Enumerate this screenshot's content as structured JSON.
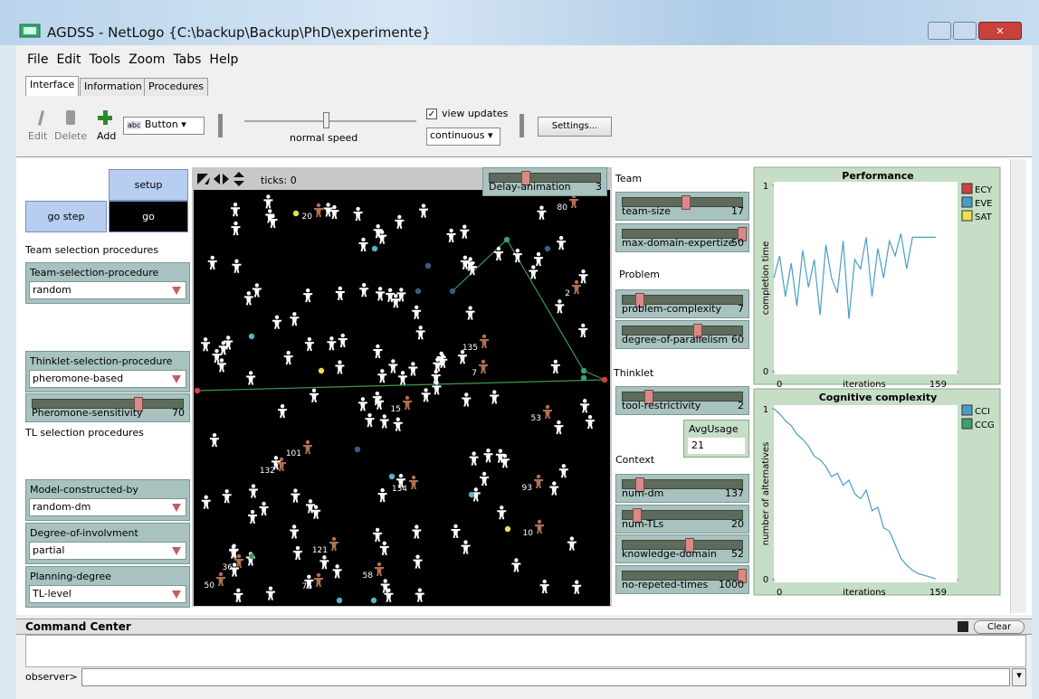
{
  "window": {
    "title": "AGDSS - NetLogo {C:\\backup\\Backup\\PhD\\experimente}"
  },
  "menu": [
    "File",
    "Edit",
    "Tools",
    "Zoom",
    "Tabs",
    "Help"
  ],
  "tabs": [
    "Interface",
    "Information",
    "Procedures"
  ],
  "toolbar": {
    "edit": "Edit",
    "delete": "Delete",
    "add": "Add",
    "abc": "abc",
    "widget_type": "Button",
    "speed_label": "normal speed",
    "view_updates": "view updates",
    "update_mode": "continuous",
    "settings": "Settings..."
  },
  "buttons": {
    "setup": "setup",
    "go_step": "go step",
    "go": "go"
  },
  "labels": {
    "team_selection": "Team selection procedures",
    "tl_selection": "TL selection procedures",
    "team": "Team",
    "problem": "Problem",
    "thinklet": "Thinklet",
    "context": "Context"
  },
  "choosers": [
    {
      "name": "Team-selection-procedure",
      "value": "random"
    },
    {
      "name": "Thinklet-selection-procedure",
      "value": "pheromone-based"
    },
    {
      "name": "Model-constructed-by",
      "value": "random-dm"
    },
    {
      "name": "Degree-of-involvment",
      "value": "partial"
    },
    {
      "name": "Planning-degree",
      "value": "TL-level"
    }
  ],
  "sliders": [
    {
      "name": "Pheromone-sensitivity",
      "value": 70
    },
    {
      "name": "Delay-animation",
      "value": 3
    },
    {
      "name": "team-size",
      "value": 17
    },
    {
      "name": "max-domain-expertize",
      "value": 50
    },
    {
      "name": "problem-complexity",
      "value": 7
    },
    {
      "name": "degree-of-parallelism",
      "value": 60
    },
    {
      "name": "tool-restrictivity",
      "value": 2
    },
    {
      "name": "num-dm",
      "value": 137
    },
    {
      "name": "num-TLs",
      "value": 20
    },
    {
      "name": "knowledge-domain",
      "value": 52
    },
    {
      "name": "no-repeted-times",
      "value": 1000
    }
  ],
  "monitor": {
    "name": "AvgUsage",
    "value": 21
  },
  "view": {
    "ticks_label": "ticks: 0",
    "agent_labels": [
      "20",
      "80",
      "2",
      "135",
      "7",
      "15",
      "53",
      "101",
      "132",
      "134",
      "93",
      "10",
      "121",
      "36",
      "58",
      "76",
      "50"
    ]
  },
  "plots": [
    {
      "title": "Performance",
      "xlabel": "iterations",
      "ylabel": "completion time",
      "xlim": [
        0,
        159
      ],
      "ylim": [
        0,
        1
      ],
      "xticks": [
        0,
        159
      ],
      "yticks": [
        0,
        1
      ],
      "x": [
        0,
        5,
        10,
        15,
        20,
        25,
        30,
        35,
        40,
        45,
        50,
        55,
        60,
        65,
        70,
        75,
        80,
        85,
        90,
        95,
        100,
        105,
        110,
        115,
        120,
        125,
        130,
        135,
        140
      ],
      "series": [
        {
          "name": "ECY",
          "color": "#d04040"
        },
        {
          "name": "EVE",
          "color": "#4a9ec4",
          "values": [
            0.5,
            0.62,
            0.4,
            0.58,
            0.35,
            0.65,
            0.45,
            0.6,
            0.3,
            0.68,
            0.5,
            0.42,
            0.7,
            0.28,
            0.6,
            0.55,
            0.72,
            0.4,
            0.66,
            0.5,
            0.7,
            0.62,
            0.74,
            0.55,
            0.72,
            0.72,
            0.72,
            0.72,
            0.72
          ]
        },
        {
          "name": "SAT",
          "color": "#e8e050"
        }
      ]
    },
    {
      "title": "Cognitive complexity",
      "xlabel": "iterations",
      "ylabel": "number of alternatives",
      "xlim": [
        0,
        159
      ],
      "ylim": [
        0,
        1
      ],
      "xticks": [
        0,
        159
      ],
      "yticks": [
        0,
        1
      ],
      "x": [
        0,
        5,
        10,
        15,
        20,
        25,
        30,
        35,
        40,
        45,
        50,
        55,
        60,
        65,
        70,
        75,
        80,
        85,
        90,
        95,
        100,
        105,
        110,
        115,
        120,
        125,
        130,
        135,
        140
      ],
      "series": [
        {
          "name": "CCI",
          "color": "#4a9ec4",
          "values": [
            1,
            0.97,
            0.93,
            0.9,
            0.85,
            0.82,
            0.78,
            0.72,
            0.7,
            0.66,
            0.6,
            0.62,
            0.55,
            0.58,
            0.5,
            0.47,
            0.52,
            0.4,
            0.42,
            0.3,
            0.28,
            0.2,
            0.12,
            0.08,
            0.05,
            0.03,
            0.02,
            0.01,
            0
          ]
        },
        {
          "name": "CCG",
          "color": "#3aa070"
        }
      ]
    }
  ],
  "command_center": {
    "title": "Command Center",
    "clear": "Clear",
    "prompt": "observer>"
  }
}
